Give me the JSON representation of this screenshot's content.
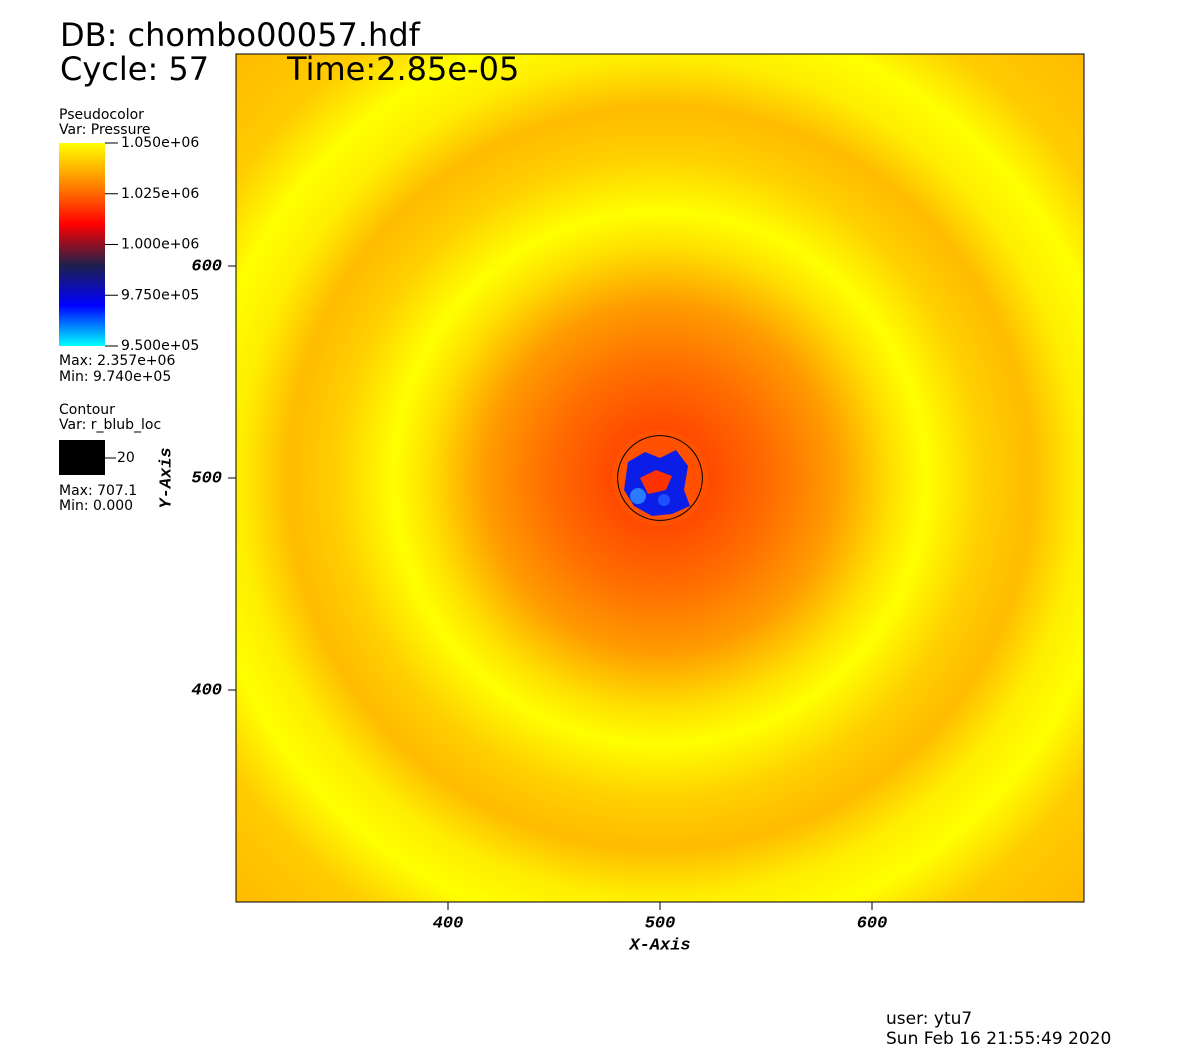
{
  "chart_data": {
    "type": "pseudocolor",
    "title": "DB: chombo00057.hdf",
    "cycle": "Cycle: 57",
    "time": "Time:2.85e-05",
    "xlabel": "X-Axis",
    "ylabel": "Y-Axis",
    "xlim": [
      300,
      700
    ],
    "ylim": [
      300,
      700
    ],
    "xticks": [
      400,
      500,
      600
    ],
    "yticks": [
      400,
      500,
      600
    ],
    "legends": [
      {
        "plot": "Pseudocolor",
        "var": "Var: Pressure",
        "lim": [
          950000,
          1050000
        ],
        "ticks": [
          {
            "value": 1050000,
            "label": "1.050e+06"
          },
          {
            "value": 1025000,
            "label": "1.025e+06"
          },
          {
            "value": 1000000,
            "label": "1.000e+06"
          },
          {
            "value": 975000,
            "label": "9.750e+05"
          },
          {
            "value": 950000,
            "label": "9.500e+05"
          }
        ],
        "colors": [
          "#00ffff",
          "#0000ff",
          "#20204a",
          "#ff0000",
          "#ff8800",
          "#ffff00"
        ],
        "max": "Max: 2.357e+06",
        "min": "Min: 9.740e+05"
      },
      {
        "plot": "Contour",
        "var": "Var: r_blub_loc",
        "levels": [
          20
        ],
        "color": "#000000",
        "max": "Max: 707.1",
        "min": "Min: 0.000"
      }
    ],
    "user": "user: ytu7",
    "date": "Sun Feb 16 21:55:49 2020"
  }
}
